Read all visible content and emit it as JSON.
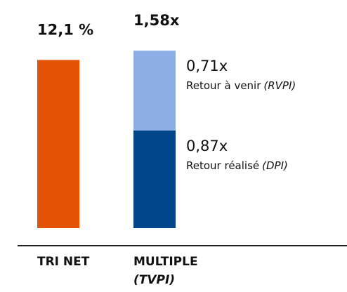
{
  "chart_data": {
    "type": "bar",
    "categories": [
      "TRI NET",
      "MULTIPLE"
    ],
    "category_notes": [
      null,
      "(TVPI)"
    ],
    "values": [
      12.1,
      1.58
    ],
    "value_labels": [
      "12,1 %",
      "1,58x"
    ],
    "color": "#e35205",
    "series": [
      {
        "name": "Retour réalisé",
        "note": "(DPI)",
        "color": "#00468b",
        "values": [
          null,
          0.87
        ],
        "value_labels": [
          null,
          "0,87x"
        ]
      },
      {
        "name": "Retour à venir",
        "note": "(RVPI)",
        "color": "#8eaee6",
        "values": [
          null,
          0.71
        ],
        "value_labels": [
          null,
          "0,71x"
        ]
      }
    ]
  }
}
